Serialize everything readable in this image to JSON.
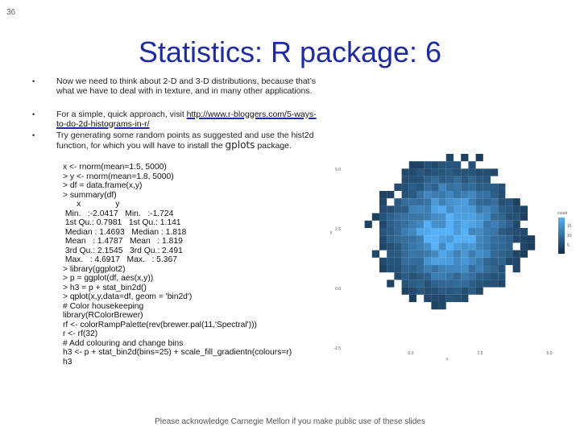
{
  "page_number": "36",
  "title": "Statistics: R package: 6",
  "bullets": [
    {
      "text": "Now we need to think about 2-D and 3-D distributions, because that’s what we have to deal with in texture, and in many other applications."
    },
    {
      "text": "For a simple, quick approach, visit ",
      "link": "http://www.r-bloggers.com/5-ways-to-do-2d-histograms-in-r/"
    },
    {
      "text": "Try generating some random points as suggested and use the hist2d function, for which you will have to install the ",
      "package": "gplots",
      "text_after": " package."
    }
  ],
  "code": [
    "x <- rnorm(mean=1.5, 5000)",
    "> y <- rnorm(mean=1.8, 5000)",
    "> df = data.frame(x,y)",
    "> summary(df)",
    "      x               y",
    " Min.   :-2.0417   Min.   :-1.724",
    " 1st Qu.: 0.7981   1st Qu.: 1.141",
    " Median : 1.4693   Median : 1.818",
    " Mean   : 1.4787   Mean   : 1.819",
    " 3rd Qu.: 2.1545   3rd Qu.: 2.491",
    " Max.   : 4.6917   Max.   : 5.367",
    "> library(ggplot2)",
    "> p = ggplot(df, aes(x,y))",
    "> h3 = p + stat_bin2d()",
    "> qplot(x,y,data=df, geom = 'bin2d')",
    "# Color housekeeping",
    "library(RColorBrewer)",
    "rf <- colorRampPalette(rev(brewer.pal(11,'Spectral')))",
    "r <- rf(32)",
    "# Add colouring and change bins",
    "h3 <- p + stat_bin2d(bins=25) + scale_fill_gradientn(colours=r)",
    "h3"
  ],
  "plot": {
    "x_label": "x",
    "y_label": "y",
    "x_ticks": [
      "0.0",
      "2.5",
      "5.0"
    ],
    "y_ticks": [
      "5.0",
      "2.5",
      "0.0",
      "-2.5"
    ],
    "legend_title": "count",
    "legend_labels": [
      "15",
      "10",
      "5"
    ]
  },
  "footer": "Please acknowledge Carnegie Mellon if you make public use of these slides"
}
